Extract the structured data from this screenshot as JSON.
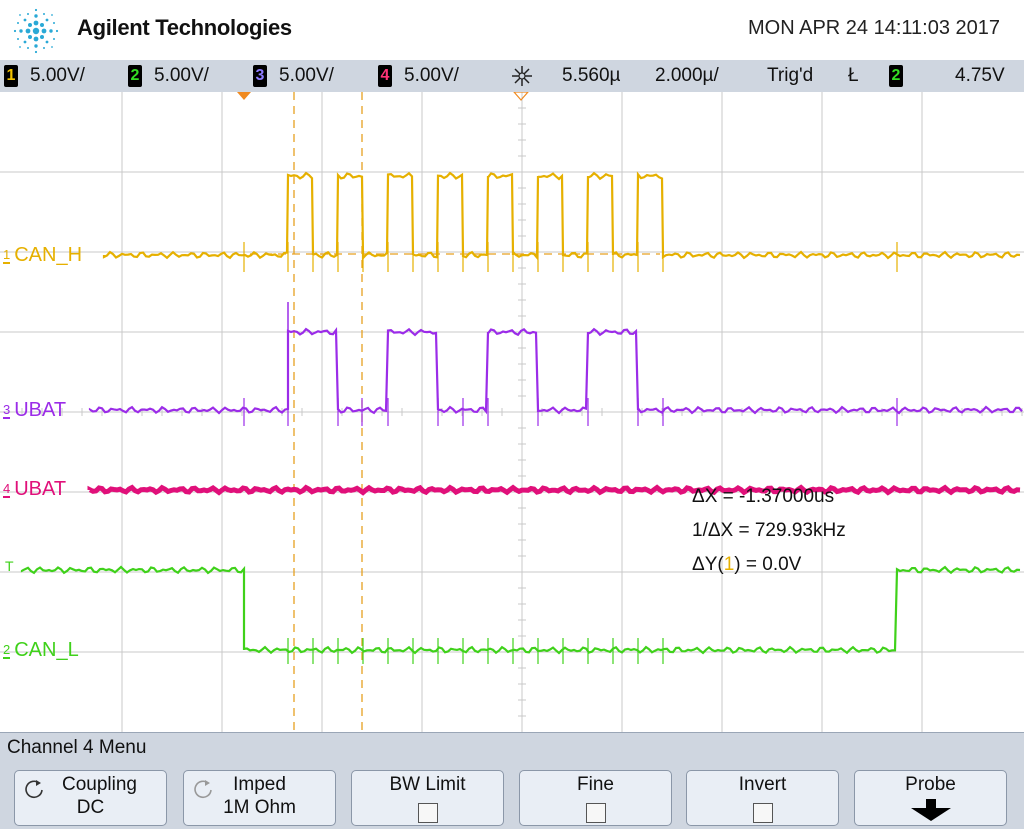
{
  "header": {
    "brand": "Agilent Technologies",
    "datetime": "MON APR 24 14:11:03 2017"
  },
  "status": {
    "channels": [
      {
        "num": "1",
        "scale": "5.00V/",
        "color": "#f2c200"
      },
      {
        "num": "2",
        "scale": "5.00V/",
        "color": "#33dd22"
      },
      {
        "num": "3",
        "scale": "5.00V/",
        "color": "#8d7bff"
      },
      {
        "num": "4",
        "scale": "5.00V/",
        "color": "#ff3377"
      }
    ],
    "delay": "5.560µ",
    "timebase": "2.000µ/",
    "trig_state": "Trig'd",
    "trig_slope": "Ł",
    "trig_channel": "2",
    "trig_level": "4.75V"
  },
  "traces": {
    "ch1": {
      "label": "CAN_H",
      "num": "1",
      "color": "#e6b000"
    },
    "ch3": {
      "label": "UBAT",
      "num": "3",
      "color": "#9b2ce8"
    },
    "ch4": {
      "label": "UBAT",
      "num": "4",
      "color": "#e0107a"
    },
    "ch2": {
      "label": "CAN_L",
      "num": "2",
      "color": "#3fd11a"
    },
    "trigger_marker": "T"
  },
  "measurements": {
    "dx": "ΔX = -1.37000us",
    "inv_dx": "1/ΔX = 729.93kHz",
    "dy_prefix": "ΔY(",
    "dy_channel": "1",
    "dy_suffix": ") = 0.0V"
  },
  "menu": {
    "title": "Channel 4  Menu",
    "softkeys": [
      {
        "line1": "Coupling",
        "line2": "DC"
      },
      {
        "line1": "Imped",
        "line2": "1M Ohm"
      },
      {
        "line1": "BW Limit",
        "line2": ""
      },
      {
        "line1": "Fine",
        "line2": ""
      },
      {
        "line1": "Invert",
        "line2": ""
      },
      {
        "line1": "Probe",
        "line2": ""
      }
    ]
  }
}
